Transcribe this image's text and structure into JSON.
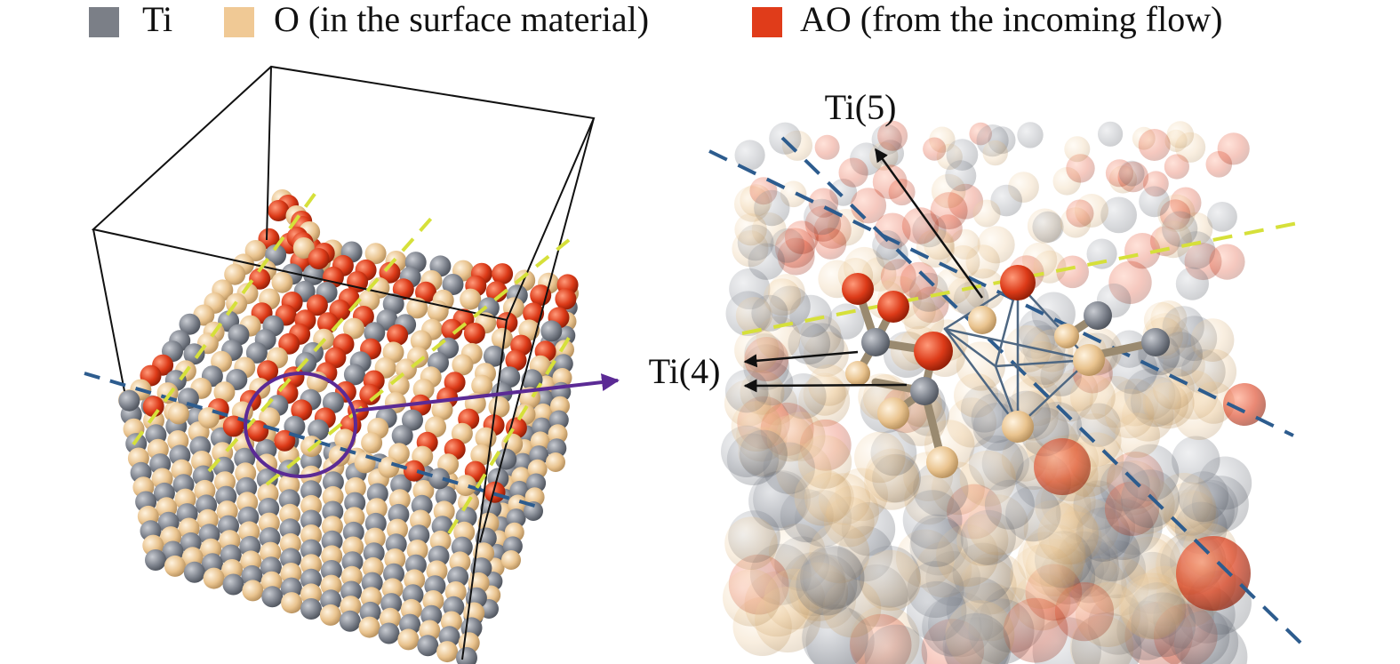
{
  "legend": {
    "items": [
      "Ti",
      "O (in the surface material)",
      "AO (from the incoming flow)"
    ]
  },
  "labels": {
    "ti5": "Ti(5)",
    "ti4": "Ti(4)"
  }
}
